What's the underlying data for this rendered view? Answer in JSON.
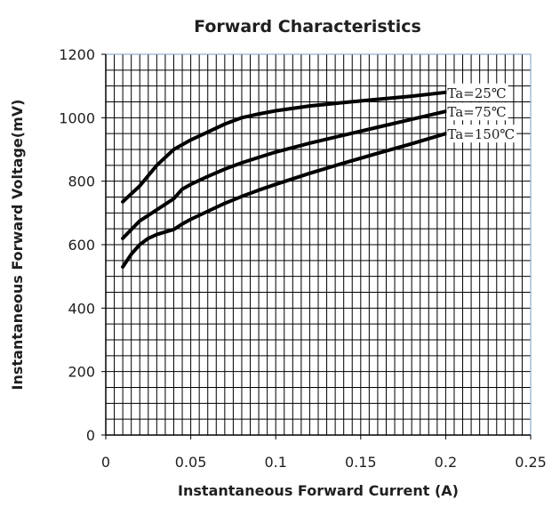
{
  "chart_data": {
    "type": "line",
    "title": "Forward Characteristics",
    "xlabel": "Instantaneous Forward Current (A)",
    "ylabel": "Instantaneous Forward Voltage(mV)",
    "xlim": [
      0,
      0.25
    ],
    "ylim": [
      0,
      1200
    ],
    "x_ticks": [
      "0",
      "0.05",
      "0.1",
      "0.15",
      "0.2",
      "0.25"
    ],
    "y_ticks": [
      "0",
      "200",
      "400",
      "600",
      "800",
      "1000",
      "1200"
    ],
    "grid": true,
    "line_color": "#000000",
    "grid_color": "#000000",
    "plot_border_color": "#7a9cc6",
    "series": [
      {
        "name": "Ta=25℃",
        "x": [
          0.01,
          0.02,
          0.03,
          0.04,
          0.05,
          0.06,
          0.07,
          0.08,
          0.09,
          0.1,
          0.12,
          0.14,
          0.16,
          0.18,
          0.2
        ],
        "y": [
          735,
          785,
          850,
          900,
          930,
          955,
          980,
          1000,
          1012,
          1022,
          1037,
          1048,
          1058,
          1068,
          1080
        ]
      },
      {
        "name": "Ta=75℃",
        "x": [
          0.01,
          0.02,
          0.03,
          0.04,
          0.045,
          0.05,
          0.06,
          0.07,
          0.08,
          0.09,
          0.1,
          0.12,
          0.14,
          0.16,
          0.18,
          0.2
        ],
        "y": [
          620,
          675,
          710,
          745,
          775,
          790,
          815,
          838,
          858,
          875,
          892,
          920,
          945,
          970,
          995,
          1020
        ]
      },
      {
        "name": "Ta=150℃",
        "x": [
          0.01,
          0.015,
          0.02,
          0.025,
          0.03,
          0.035,
          0.04,
          0.045,
          0.05,
          0.06,
          0.07,
          0.08,
          0.09,
          0.1,
          0.12,
          0.14,
          0.16,
          0.18,
          0.2
        ],
        "y": [
          530,
          570,
          600,
          620,
          632,
          640,
          648,
          665,
          680,
          705,
          730,
          752,
          772,
          790,
          825,
          857,
          888,
          918,
          950
        ]
      }
    ]
  }
}
